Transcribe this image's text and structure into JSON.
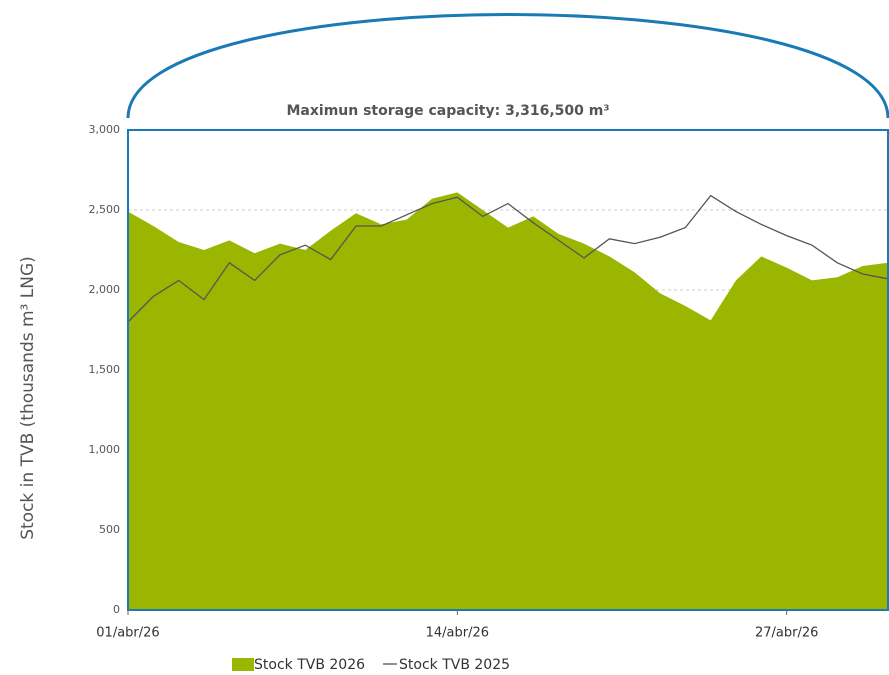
{
  "chart_data": {
    "type": "area-line",
    "annotation": "Maximun storage capacity: 3,316,500 m³",
    "y_label": "Stock in TVB (thousands m³ LNG)",
    "categories": [
      "01/abr/26",
      null,
      null,
      null,
      null,
      null,
      null,
      null,
      null,
      null,
      null,
      null,
      null,
      "14/abr/26",
      null,
      null,
      null,
      null,
      null,
      null,
      null,
      null,
      null,
      null,
      null,
      null,
      "27/abr/26",
      null,
      null,
      null,
      null
    ],
    "series": [
      {
        "name": "Stock TVB 2026",
        "color": "#9bb600",
        "kind": "area",
        "values": [
          2490,
          2400,
          2300,
          2250,
          2310,
          2230,
          2290,
          2250,
          2370,
          2480,
          2410,
          2440,
          2570,
          2610,
          2500,
          2390,
          2460,
          2350,
          2290,
          2210,
          2110,
          1980,
          1900,
          1810,
          2060,
          2210,
          2140,
          2060,
          2080,
          2150,
          2170
        ]
      },
      {
        "name": "Stock TVB 2025",
        "color": "#555555",
        "kind": "line",
        "values": [
          1800,
          1960,
          2060,
          1940,
          2170,
          2060,
          2220,
          2280,
          2190,
          2400,
          2400,
          2470,
          2540,
          2580,
          2460,
          2540,
          2420,
          2310,
          2200,
          2320,
          2290,
          2330,
          2390,
          2590,
          2490,
          2410,
          2340,
          2280,
          2170,
          2100,
          2070
        ]
      }
    ],
    "ylim": [
      0,
      3000
    ],
    "yticks": [
      0,
      500,
      {
        "value": 1000,
        "label": "1,000"
      },
      {
        "value": 1500,
        "label": "1,500"
      },
      {
        "value": 2000,
        "label": "2,000"
      },
      {
        "value": 2500,
        "label": "2,500"
      },
      {
        "value": 3000,
        "label": "3,000"
      }
    ],
    "grid": true,
    "frame_color": "#1a7ab5"
  }
}
